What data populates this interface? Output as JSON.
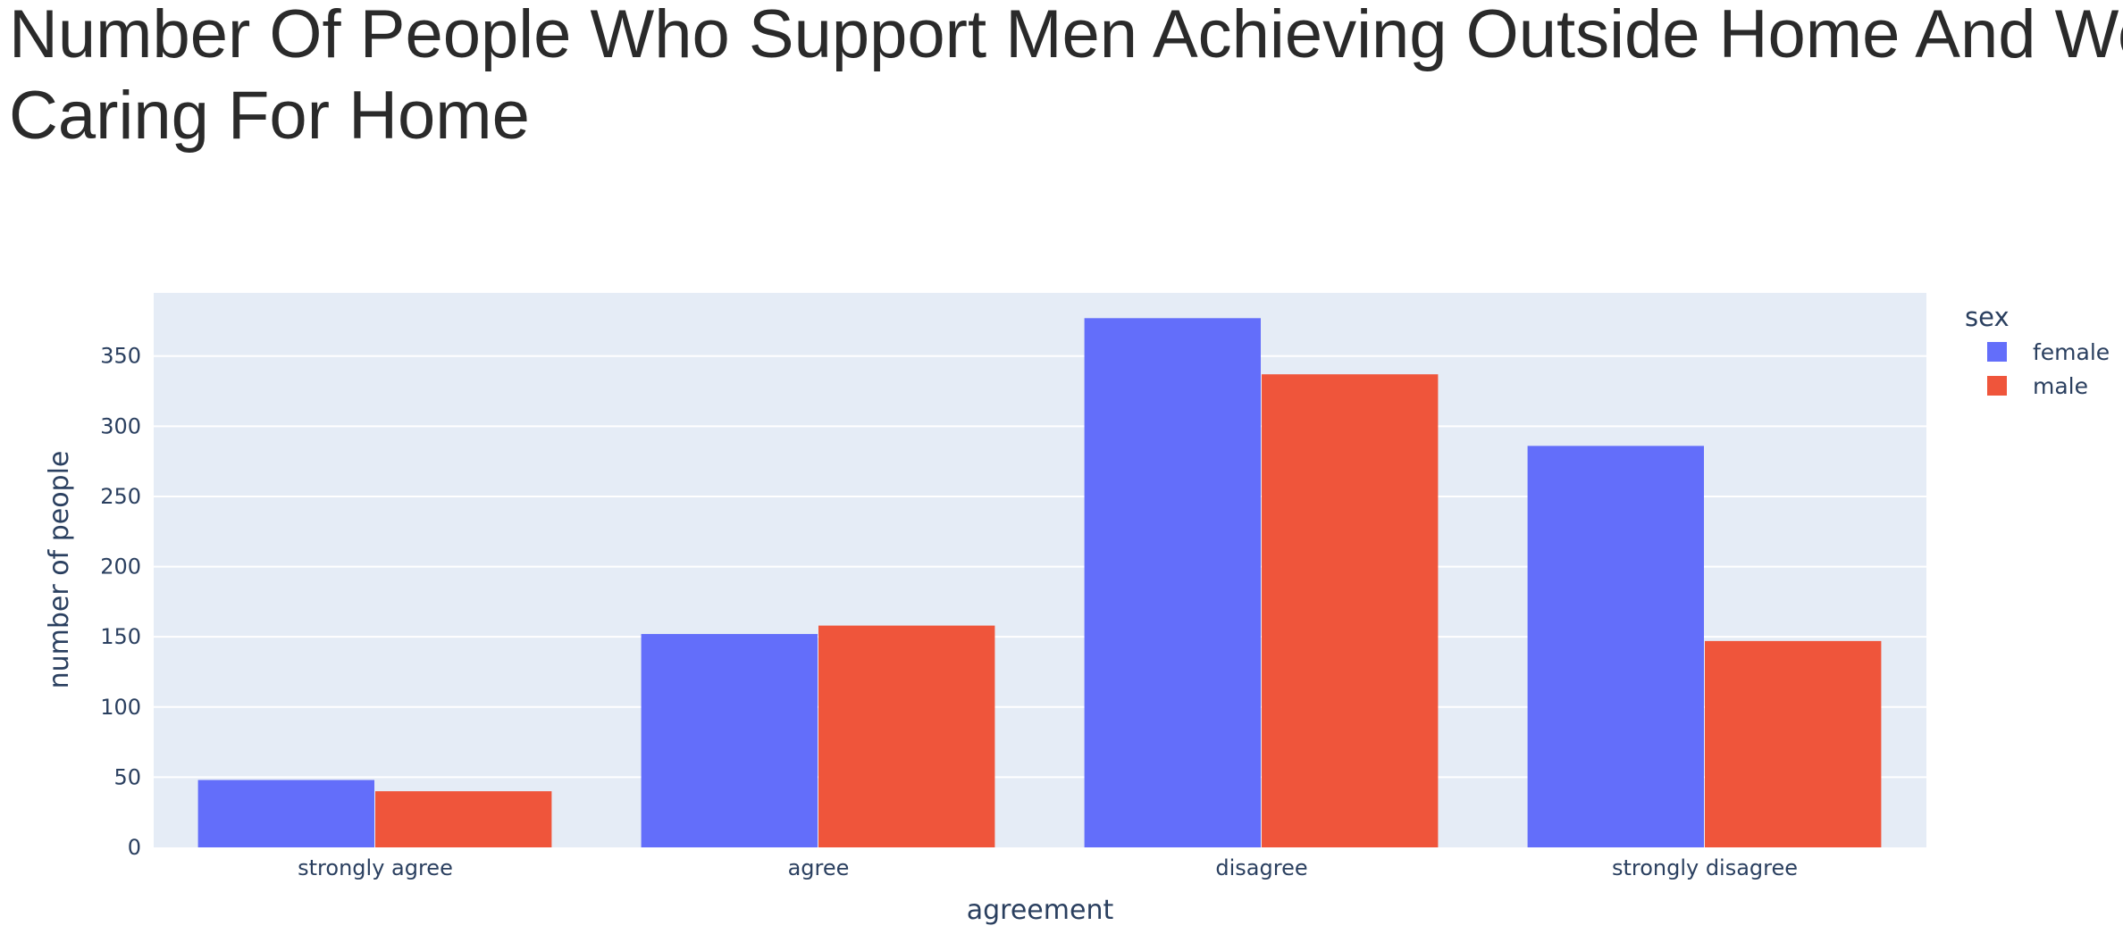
{
  "chart_data": {
    "type": "bar",
    "barmode": "group",
    "title_lines": [
      "Number Of People Who Support Men Achieving Outside Home And Women",
      "Caring For Home"
    ],
    "xlabel": "agreement",
    "ylabel": "number of people",
    "categories": [
      "strongly agree",
      "agree",
      "disagree",
      "strongly disagree"
    ],
    "series": [
      {
        "name": "female",
        "color": "#636efa",
        "values": [
          48,
          152,
          377,
          286
        ]
      },
      {
        "name": "male",
        "color": "#ef553b",
        "values": [
          40,
          158,
          337,
          147
        ]
      }
    ],
    "ylim": [
      0,
      395
    ],
    "yticks": [
      0,
      50,
      100,
      150,
      200,
      250,
      300,
      350
    ],
    "grid": true,
    "legend": {
      "title": "sex",
      "placement": "top-right outside plot"
    },
    "colors": {
      "plot_background": "#e5ecf6",
      "gridline": "#ffffff",
      "text": "#2a3f5f",
      "title": "#2a2a2a"
    }
  }
}
